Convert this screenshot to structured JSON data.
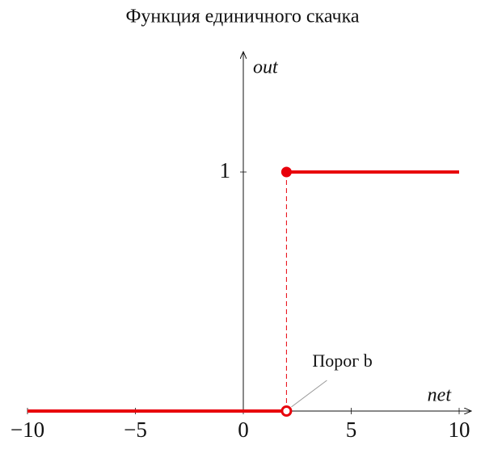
{
  "chart_data": {
    "type": "line",
    "title": "Функция единичного скачка",
    "x_label": "net",
    "y_label": "out",
    "xlim": [
      -10,
      10
    ],
    "ylim": [
      0,
      1.5
    ],
    "xticks": [
      {
        "value": -10,
        "label": "−10"
      },
      {
        "value": -5,
        "label": "−5"
      },
      0,
      5,
      10
    ],
    "yticks": [
      1
    ],
    "grid": false,
    "series": [
      {
        "color": "#e8000b",
        "x": [
          -10,
          2
        ],
        "values": [
          0,
          0
        ]
      },
      {
        "color": "#e8000b",
        "x": [
          2,
          10
        ],
        "values": [
          1,
          1
        ]
      }
    ],
    "markers": [
      {
        "x": 2,
        "y": 0,
        "filled": false
      },
      {
        "x": 2,
        "y": 1,
        "filled": true
      }
    ],
    "threshold": {
      "x": 2,
      "label": "Порог b"
    }
  }
}
